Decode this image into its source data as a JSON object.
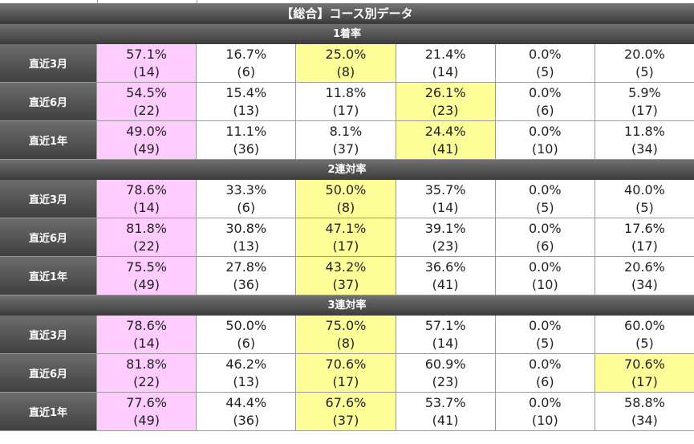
{
  "title": "【総合】コース別データ",
  "colors": {
    "pink": "#ffccff",
    "yellow": "#ffff99"
  },
  "sections": [
    {
      "title": "1着率",
      "rows": [
        {
          "label": "直近3月",
          "cells": [
            {
              "pct": "57.1%",
              "count": "(14)",
              "hl": "pink"
            },
            {
              "pct": "16.7%",
              "count": "(6)",
              "hl": ""
            },
            {
              "pct": "25.0%",
              "count": "(8)",
              "hl": "yellow"
            },
            {
              "pct": "21.4%",
              "count": "(14)",
              "hl": ""
            },
            {
              "pct": "0.0%",
              "count": "(5)",
              "hl": ""
            },
            {
              "pct": "20.0%",
              "count": "(5)",
              "hl": ""
            }
          ]
        },
        {
          "label": "直近6月",
          "cells": [
            {
              "pct": "54.5%",
              "count": "(22)",
              "hl": "pink"
            },
            {
              "pct": "15.4%",
              "count": "(13)",
              "hl": ""
            },
            {
              "pct": "11.8%",
              "count": "(17)",
              "hl": ""
            },
            {
              "pct": "26.1%",
              "count": "(23)",
              "hl": "yellow"
            },
            {
              "pct": "0.0%",
              "count": "(6)",
              "hl": ""
            },
            {
              "pct": "5.9%",
              "count": "(17)",
              "hl": ""
            }
          ]
        },
        {
          "label": "直近1年",
          "cells": [
            {
              "pct": "49.0%",
              "count": "(49)",
              "hl": "pink"
            },
            {
              "pct": "11.1%",
              "count": "(36)",
              "hl": ""
            },
            {
              "pct": "8.1%",
              "count": "(37)",
              "hl": ""
            },
            {
              "pct": "24.4%",
              "count": "(41)",
              "hl": "yellow"
            },
            {
              "pct": "0.0%",
              "count": "(10)",
              "hl": ""
            },
            {
              "pct": "11.8%",
              "count": "(34)",
              "hl": ""
            }
          ]
        }
      ]
    },
    {
      "title": "2連対率",
      "rows": [
        {
          "label": "直近3月",
          "cells": [
            {
              "pct": "78.6%",
              "count": "(14)",
              "hl": "pink"
            },
            {
              "pct": "33.3%",
              "count": "(6)",
              "hl": ""
            },
            {
              "pct": "50.0%",
              "count": "(8)",
              "hl": "yellow"
            },
            {
              "pct": "35.7%",
              "count": "(14)",
              "hl": ""
            },
            {
              "pct": "0.0%",
              "count": "(5)",
              "hl": ""
            },
            {
              "pct": "40.0%",
              "count": "(5)",
              "hl": ""
            }
          ]
        },
        {
          "label": "直近6月",
          "cells": [
            {
              "pct": "81.8%",
              "count": "(22)",
              "hl": "pink"
            },
            {
              "pct": "30.8%",
              "count": "(13)",
              "hl": ""
            },
            {
              "pct": "47.1%",
              "count": "(17)",
              "hl": "yellow"
            },
            {
              "pct": "39.1%",
              "count": "(23)",
              "hl": ""
            },
            {
              "pct": "0.0%",
              "count": "(6)",
              "hl": ""
            },
            {
              "pct": "17.6%",
              "count": "(17)",
              "hl": ""
            }
          ]
        },
        {
          "label": "直近1年",
          "cells": [
            {
              "pct": "75.5%",
              "count": "(49)",
              "hl": "pink"
            },
            {
              "pct": "27.8%",
              "count": "(36)",
              "hl": ""
            },
            {
              "pct": "43.2%",
              "count": "(37)",
              "hl": "yellow"
            },
            {
              "pct": "36.6%",
              "count": "(41)",
              "hl": ""
            },
            {
              "pct": "0.0%",
              "count": "(10)",
              "hl": ""
            },
            {
              "pct": "20.6%",
              "count": "(34)",
              "hl": ""
            }
          ]
        }
      ]
    },
    {
      "title": "3連対率",
      "rows": [
        {
          "label": "直近3月",
          "cells": [
            {
              "pct": "78.6%",
              "count": "(14)",
              "hl": "pink"
            },
            {
              "pct": "50.0%",
              "count": "(6)",
              "hl": ""
            },
            {
              "pct": "75.0%",
              "count": "(8)",
              "hl": "yellow"
            },
            {
              "pct": "57.1%",
              "count": "(14)",
              "hl": ""
            },
            {
              "pct": "0.0%",
              "count": "(5)",
              "hl": ""
            },
            {
              "pct": "60.0%",
              "count": "(5)",
              "hl": ""
            }
          ]
        },
        {
          "label": "直近6月",
          "cells": [
            {
              "pct": "81.8%",
              "count": "(22)",
              "hl": "pink"
            },
            {
              "pct": "46.2%",
              "count": "(13)",
              "hl": ""
            },
            {
              "pct": "70.6%",
              "count": "(17)",
              "hl": "yellow"
            },
            {
              "pct": "60.9%",
              "count": "(23)",
              "hl": ""
            },
            {
              "pct": "0.0%",
              "count": "(6)",
              "hl": ""
            },
            {
              "pct": "70.6%",
              "count": "(17)",
              "hl": "yellow"
            }
          ]
        },
        {
          "label": "直近1年",
          "cells": [
            {
              "pct": "77.6%",
              "count": "(49)",
              "hl": "pink"
            },
            {
              "pct": "44.4%",
              "count": "(36)",
              "hl": ""
            },
            {
              "pct": "67.6%",
              "count": "(37)",
              "hl": "yellow"
            },
            {
              "pct": "53.7%",
              "count": "(41)",
              "hl": ""
            },
            {
              "pct": "0.0%",
              "count": "(10)",
              "hl": ""
            },
            {
              "pct": "58.8%",
              "count": "(34)",
              "hl": ""
            }
          ]
        }
      ]
    }
  ]
}
